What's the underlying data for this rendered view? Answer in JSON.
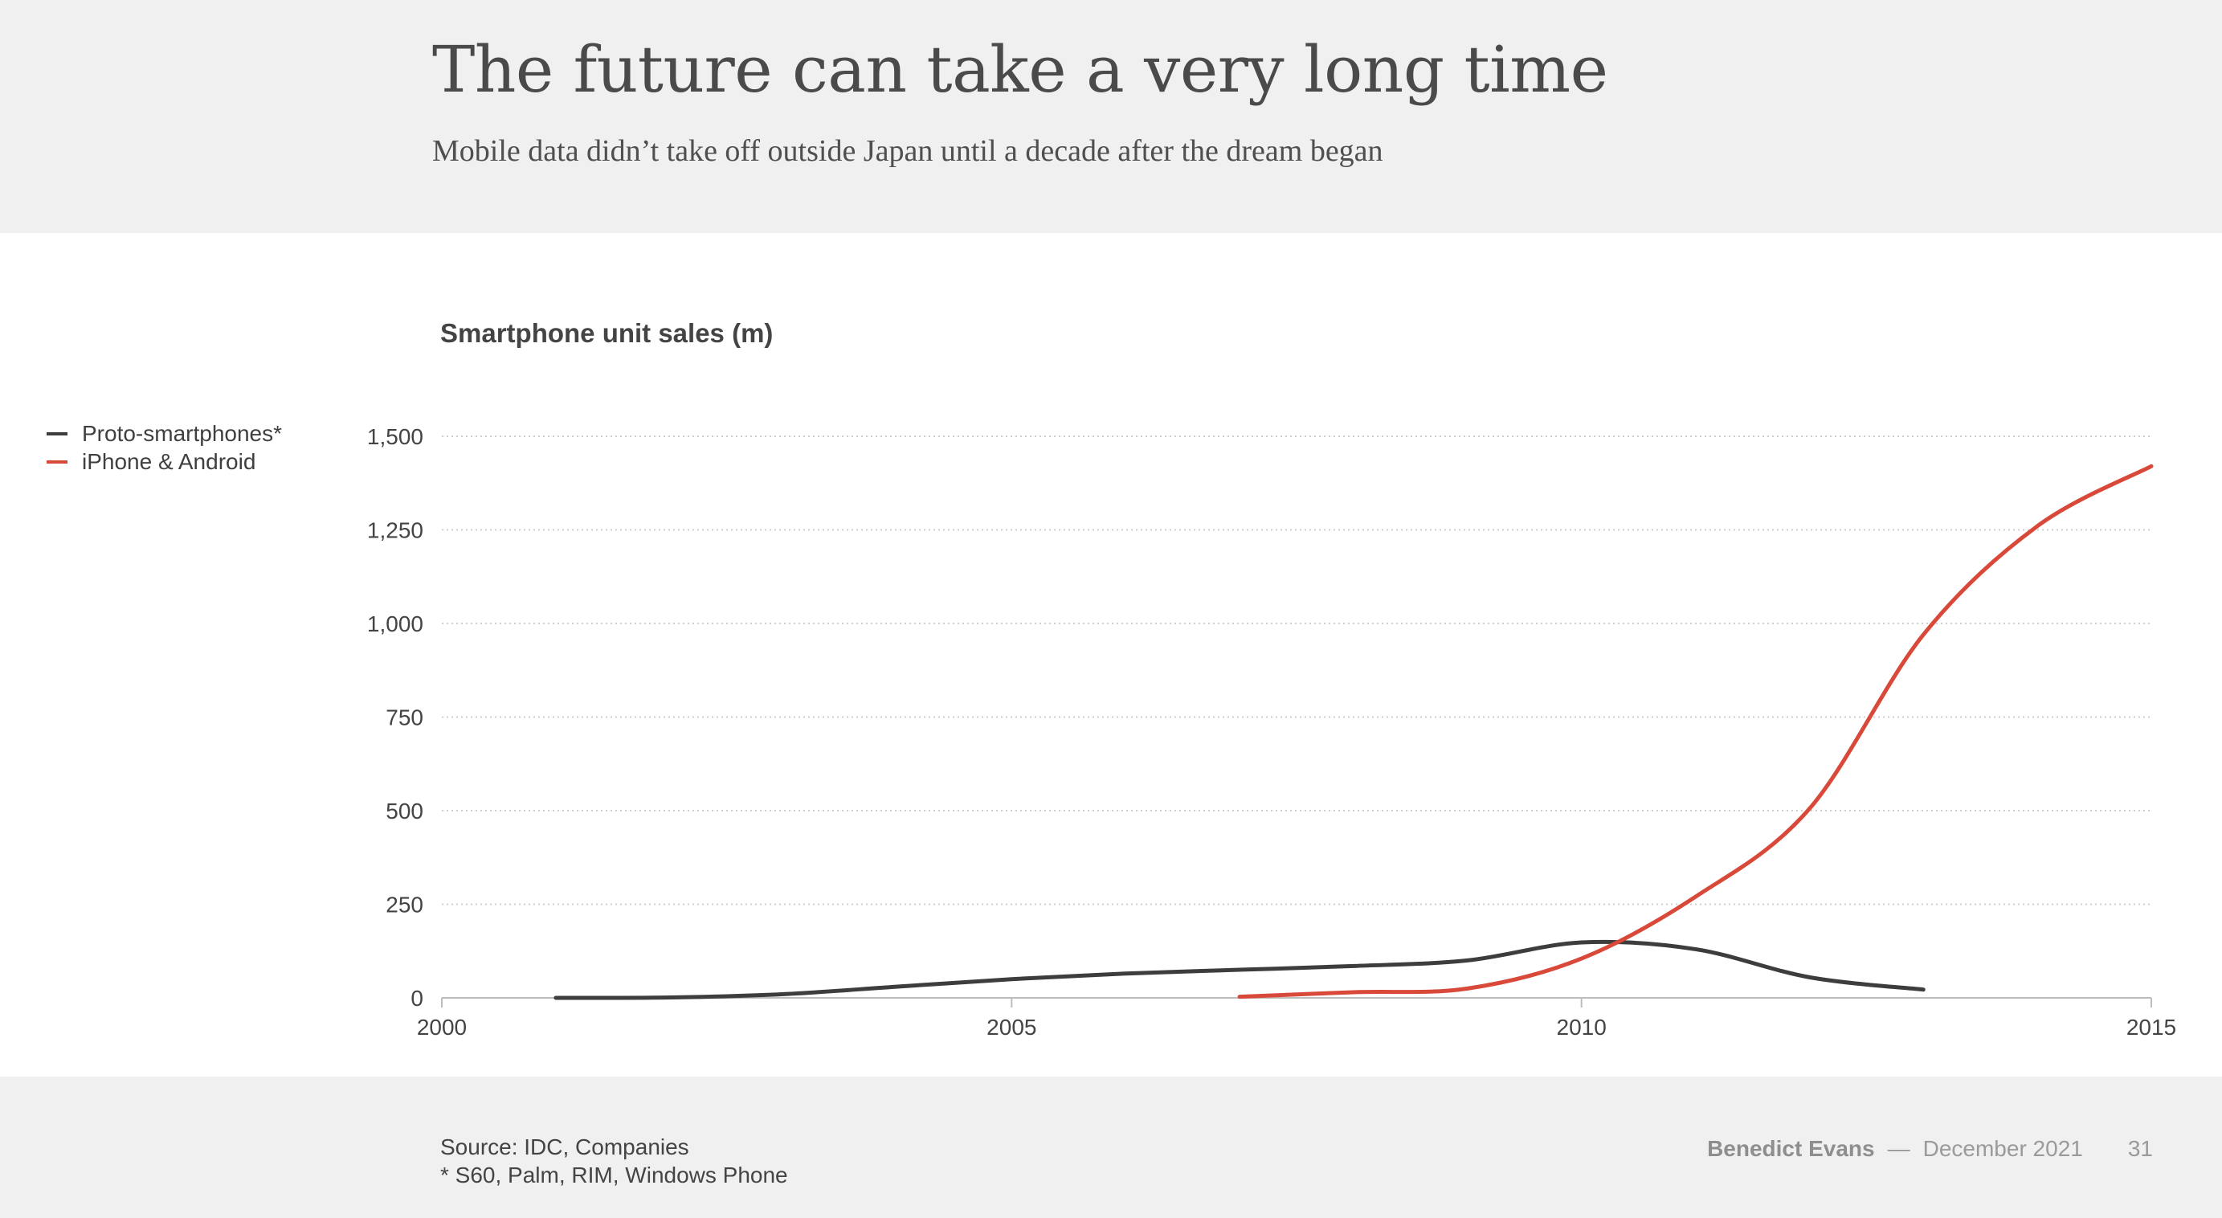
{
  "header": {
    "title": "The future can take a very long time",
    "subtitle": "Mobile data didn’t take off outside Japan until a decade after the dream began"
  },
  "footer": {
    "source_line1": "Source: IDC, Companies",
    "source_line2": "* S60, Palm, RIM, Windows Phone",
    "author": "Benedict Evans",
    "separator": "—",
    "date": "December 2021",
    "page": "31"
  },
  "chart_data": {
    "type": "line",
    "title": "Smartphone unit sales (m)",
    "xlabel": "",
    "ylabel": "",
    "xlim": [
      2000,
      2015
    ],
    "ylim": [
      0,
      1500
    ],
    "xticks": [
      2000,
      2005,
      2010,
      2015
    ],
    "xtick_labels": [
      "2000",
      "2005",
      "2010",
      "2015"
    ],
    "yticks": [
      0,
      250,
      500,
      750,
      1000,
      1250,
      1500
    ],
    "ytick_labels": [
      "0",
      "250",
      "500",
      "750",
      "1,000",
      "1,250",
      "1,500"
    ],
    "grid": true,
    "legend_position": "left",
    "series": [
      {
        "name": "Proto-smartphones*",
        "color": "#3d3d3d",
        "x": [
          2001,
          2002,
          2003,
          2004,
          2005,
          2006,
          2007,
          2008,
          2009,
          2010,
          2011,
          2012,
          2013
        ],
        "y": [
          0,
          1,
          10,
          30,
          50,
          65,
          75,
          85,
          100,
          148,
          130,
          55,
          22
        ]
      },
      {
        "name": "iPhone & Android",
        "color": "#d9493a",
        "x": [
          2007,
          2008,
          2009,
          2010,
          2011,
          2012,
          2013,
          2014,
          2015
        ],
        "y": [
          3,
          15,
          25,
          105,
          270,
          505,
          970,
          1260,
          1420
        ]
      }
    ]
  }
}
